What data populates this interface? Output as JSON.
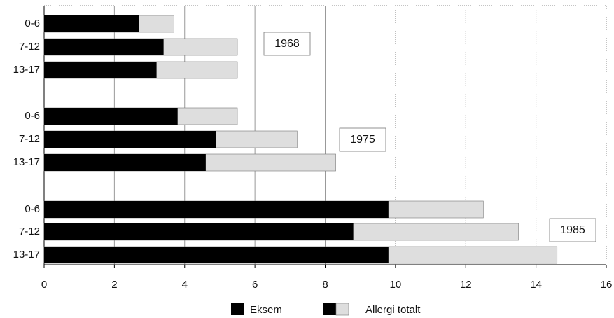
{
  "chart_data": {
    "type": "bar",
    "orientation": "horizontal",
    "categories": [
      "0-6",
      "7-12",
      "13-17",
      "0-6",
      "7-12",
      "13-17",
      "0-6",
      "7-12",
      "13-17"
    ],
    "series": [
      {
        "name": "Eksem",
        "color": "#000000",
        "values": [
          2.7,
          3.4,
          3.2,
          3.8,
          4.9,
          4.6,
          9.8,
          8.8,
          9.8
        ]
      },
      {
        "name": "Allergi totalt",
        "color": "#dedede",
        "values": [
          3.7,
          5.5,
          5.5,
          5.5,
          7.2,
          8.3,
          12.5,
          13.5,
          14.6
        ]
      }
    ],
    "annotations": [
      "1968",
      "1975",
      "1985"
    ],
    "xlim": [
      0,
      16
    ],
    "xticks": [
      0,
      2,
      4,
      6,
      8,
      10,
      12,
      14,
      16
    ],
    "grid": true
  }
}
